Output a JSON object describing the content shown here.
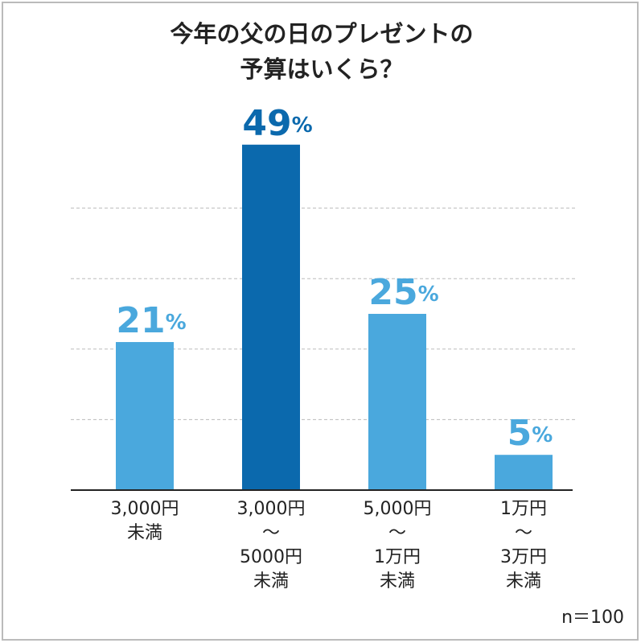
{
  "chart_data": {
    "type": "bar",
    "title": [
      "今年の父の日のプレゼントの",
      "予算はいくら？"
    ],
    "categories": [
      "3,000円\n未満",
      "3,000円\n～\n5000円\n未満",
      "5,000円\n～\n1万円\n未満",
      "1万円\n～\n3万円\n未満"
    ],
    "values": [
      21,
      49,
      25,
      5
    ],
    "value_labels": [
      "21%",
      "49%",
      "25%",
      "5%"
    ],
    "colors": [
      "#4aa8dd",
      "#0b69ad",
      "#4aa8dd",
      "#4aa8dd"
    ],
    "ylim": [
      0,
      50
    ],
    "yticks": [
      10,
      20,
      30,
      40
    ],
    "grid": true,
    "note": "n＝100"
  }
}
